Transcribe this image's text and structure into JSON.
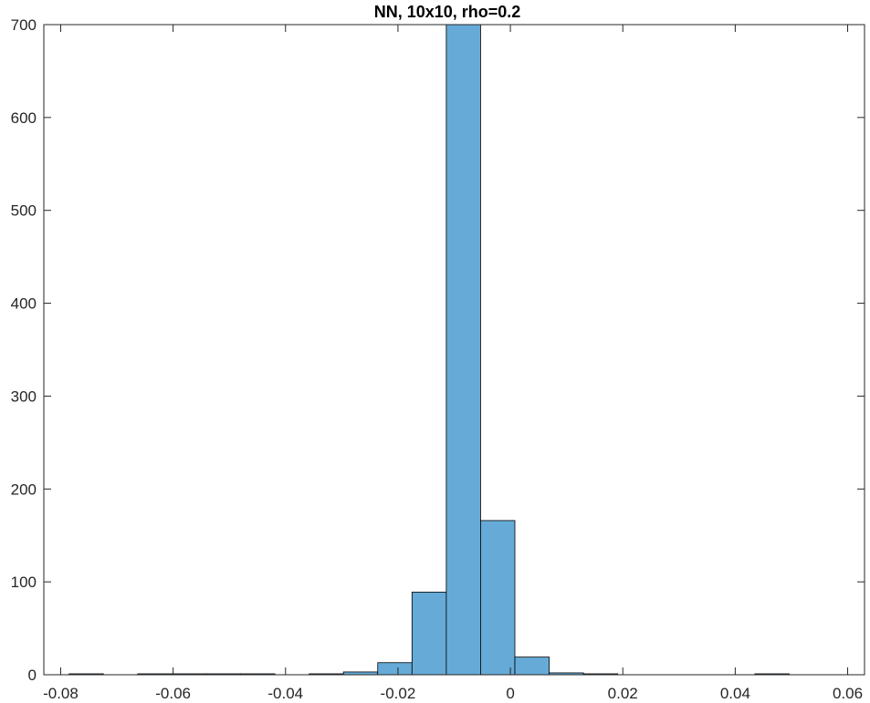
{
  "chart_data": {
    "type": "bar",
    "title": "NN, 10x10, rho=0.2",
    "xlabel": "",
    "ylabel": "",
    "xlim": [
      -0.083,
      0.063
    ],
    "ylim": [
      0,
      700
    ],
    "bin_edges": [
      -0.0785,
      -0.0724,
      -0.0663,
      -0.0602,
      -0.0541,
      -0.048,
      -0.0419,
      -0.0358,
      -0.0297,
      -0.0236,
      -0.0175,
      -0.0114,
      -0.0053,
      0.0008,
      0.0069,
      0.013,
      0.0191,
      0.0252,
      0.0313,
      0.0374,
      0.0435,
      0.0496,
      0.0557
    ],
    "values": [
      1,
      0,
      1,
      1,
      1,
      1,
      0,
      1,
      3,
      13,
      89,
      700,
      166,
      19,
      2,
      1,
      0,
      0,
      0,
      0,
      1,
      0
    ],
    "xticks": [
      -0.08,
      -0.06,
      -0.04,
      -0.02,
      0,
      0.02,
      0.04,
      0.06
    ],
    "xtick_labels": [
      "-0.08",
      "-0.06",
      "-0.04",
      "-0.02",
      "0",
      "0.02",
      "0.04",
      "0.06"
    ],
    "yticks": [
      0,
      100,
      200,
      300,
      400,
      500,
      600,
      700
    ],
    "ytick_labels": [
      "0",
      "100",
      "200",
      "300",
      "400",
      "500",
      "600",
      "700"
    ],
    "grid": false,
    "bar_color": "#66abd7",
    "edge_color": "#000000"
  }
}
